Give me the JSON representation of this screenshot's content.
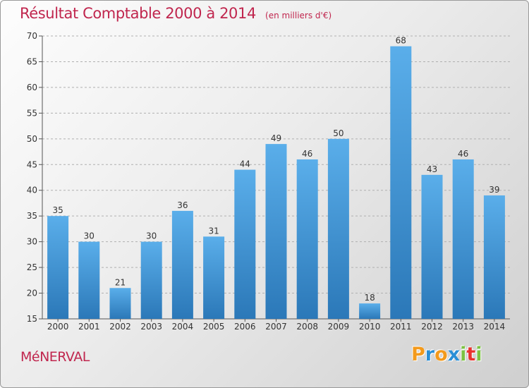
{
  "title": "Résultat Comptable 2000 à 2014",
  "subtitle": "(en milliers d'€)",
  "commune": "MéNERVAL",
  "logo": {
    "letters": [
      "P",
      "r",
      "o",
      "x",
      "i",
      "t",
      "i"
    ],
    "colors": [
      "#f39a1c",
      "#2a8fd6",
      "#f39a1c",
      "#2a8fd6",
      "#7cc242",
      "#e8322f",
      "#7cc242"
    ]
  },
  "colors": {
    "bar_light": "#5aaeea",
    "bar_dark": "#2b78b8",
    "title": "#c0264e",
    "grid": "#b0b0b0"
  },
  "chart_data": {
    "type": "bar",
    "categories": [
      "2000",
      "2001",
      "2002",
      "2003",
      "2004",
      "2005",
      "2006",
      "2007",
      "2008",
      "2009",
      "2010",
      "2011",
      "2012",
      "2013",
      "2014"
    ],
    "values": [
      35,
      30,
      21,
      30,
      36,
      31,
      44,
      49,
      46,
      50,
      18,
      68,
      43,
      46,
      39
    ],
    "ylim": [
      15,
      70
    ],
    "yticks": [
      15,
      20,
      25,
      30,
      35,
      40,
      45,
      50,
      55,
      60,
      65,
      70
    ],
    "grid": true,
    "grid_style": "dashed horizontal",
    "xlabel": "",
    "ylabel": ""
  }
}
